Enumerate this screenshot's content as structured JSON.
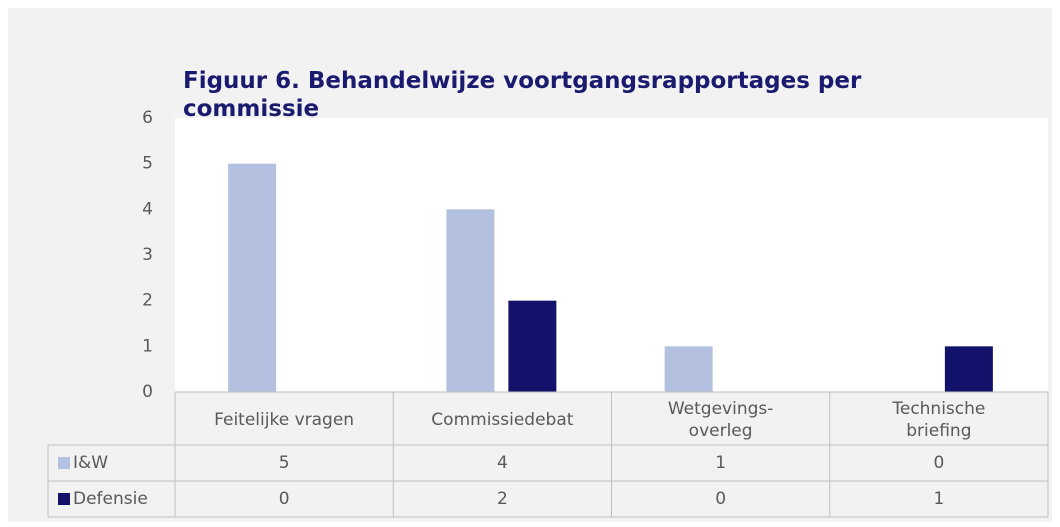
{
  "chart_data": {
    "type": "bar",
    "title": [
      "Figuur 6. Behandelwijze voortgangsrapportages per",
      "commissie"
    ],
    "categories": [
      "Feitelijke vragen",
      "Commissiedebat",
      "Wetgevings-\noverleg",
      "Technische\nbriefing"
    ],
    "series": [
      {
        "name": "I&W",
        "color": "#b4c0e0",
        "values": [
          5,
          4,
          1,
          0
        ]
      },
      {
        "name": "Defensie",
        "color": "#12126a",
        "values": [
          0,
          2,
          0,
          1
        ]
      }
    ],
    "ylim": [
      0,
      6
    ],
    "yticks": [
      0,
      1,
      2,
      3,
      4,
      5,
      6
    ],
    "grid": false,
    "data_table": true
  }
}
